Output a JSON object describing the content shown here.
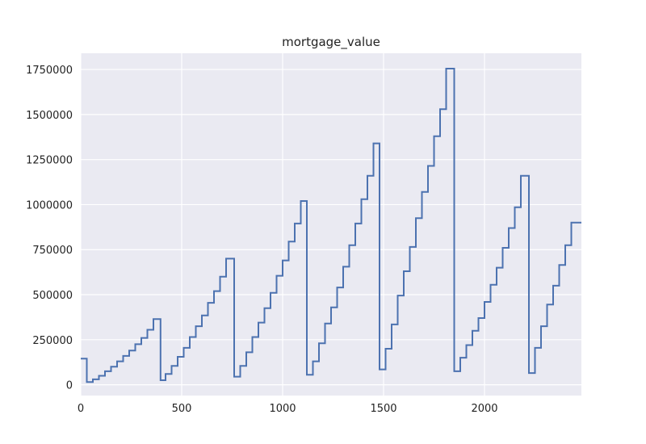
{
  "chart_data": {
    "type": "line",
    "drawstyle": "steps-post",
    "title": "mortgage_value",
    "xlabel": "",
    "ylabel": "",
    "xlim": [
      0,
      2480
    ],
    "ylim": [
      -60000,
      1840000
    ],
    "xticks": [
      0,
      500,
      1000,
      1500,
      2000
    ],
    "yticks": [
      0,
      250000,
      500000,
      750000,
      1000000,
      1250000,
      1500000,
      1750000
    ],
    "grid": true,
    "legend": "none",
    "colors": {
      "line": "#4c72b0",
      "plot_bg": "#eaeaf2",
      "grid": "#ffffff"
    },
    "series": [
      {
        "x": [
          0,
          30,
          60,
          90,
          120,
          150,
          180,
          210,
          240,
          270,
          300,
          330,
          360,
          395,
          420,
          450,
          480,
          510,
          540,
          570,
          600,
          630,
          660,
          690,
          720,
          760,
          790,
          820,
          850,
          880,
          910,
          940,
          970,
          1000,
          1030,
          1060,
          1090,
          1120,
          1150,
          1180,
          1210,
          1240,
          1270,
          1300,
          1330,
          1360,
          1390,
          1420,
          1450,
          1480,
          1510,
          1540,
          1570,
          1600,
          1630,
          1660,
          1690,
          1720,
          1750,
          1780,
          1810,
          1850,
          1880,
          1910,
          1940,
          1970,
          2000,
          2030,
          2060,
          2090,
          2120,
          2150,
          2180,
          2220,
          2250,
          2280,
          2310,
          2340,
          2370,
          2400,
          2430,
          2480
        ],
        "y": [
          145000,
          15000,
          30000,
          50000,
          75000,
          100000,
          130000,
          160000,
          190000,
          225000,
          260000,
          305000,
          365000,
          25000,
          60000,
          105000,
          155000,
          205000,
          265000,
          325000,
          385000,
          455000,
          520000,
          600000,
          700000,
          45000,
          105000,
          180000,
          265000,
          345000,
          425000,
          510000,
          605000,
          690000,
          795000,
          895000,
          1020000,
          55000,
          130000,
          230000,
          340000,
          430000,
          540000,
          655000,
          775000,
          895000,
          1030000,
          1160000,
          1340000,
          85000,
          200000,
          335000,
          495000,
          630000,
          765000,
          925000,
          1070000,
          1215000,
          1380000,
          1530000,
          1755000,
          75000,
          150000,
          220000,
          300000,
          370000,
          460000,
          555000,
          650000,
          760000,
          870000,
          985000,
          1160000,
          65000,
          205000,
          325000,
          445000,
          550000,
          665000,
          775000,
          900000,
          900000
        ]
      }
    ]
  }
}
